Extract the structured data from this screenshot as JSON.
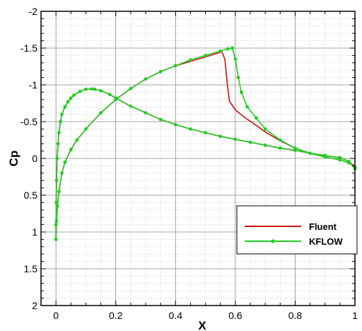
{
  "chart_data": {
    "type": "line",
    "xlabel": "X",
    "ylabel": "Cp",
    "xlim": [
      -0.05,
      1.0
    ],
    "ylim": [
      2,
      -2
    ],
    "y_inverted": true,
    "x_ticks": [
      "0",
      "0.2",
      "0.4",
      "0.6",
      "0.8",
      "1"
    ],
    "y_ticks": [
      "-2",
      "-1.5",
      "-1",
      "-0.5",
      "0",
      "0.5",
      "1",
      "1.5",
      "2"
    ],
    "x_tick_values": [
      0,
      0.2,
      0.4,
      0.6,
      0.8,
      1
    ],
    "y_tick_values": [
      -2,
      -1.5,
      -1,
      -0.5,
      0,
      0.5,
      1,
      1.5,
      2
    ],
    "grid": true,
    "legend_position": "bottom-right",
    "series": [
      {
        "name": "Fluent",
        "color": "#cc1111",
        "marker": "none",
        "curves": [
          {
            "x": [
              0.0,
              0.0,
              0.001,
              0.002,
              0.004,
              0.007,
              0.01,
              0.015,
              0.02,
              0.03,
              0.04,
              0.05,
              0.06,
              0.08,
              0.1,
              0.12,
              0.13,
              0.15,
              0.18,
              0.2,
              0.25,
              0.3,
              0.35,
              0.4,
              0.45,
              0.5,
              0.55,
              0.6,
              0.65,
              0.7,
              0.75,
              0.8,
              0.85,
              0.9,
              0.95,
              0.98,
              1.0
            ],
            "y": [
              1.1,
              0.9,
              0.6,
              0.3,
              0.0,
              -0.2,
              -0.35,
              -0.5,
              -0.6,
              -0.7,
              -0.77,
              -0.82,
              -0.86,
              -0.91,
              -0.94,
              -0.945,
              -0.94,
              -0.92,
              -0.87,
              -0.82,
              -0.71,
              -0.62,
              -0.53,
              -0.46,
              -0.4,
              -0.35,
              -0.3,
              -0.26,
              -0.22,
              -0.18,
              -0.14,
              -0.11,
              -0.07,
              -0.04,
              -0.01,
              0.04,
              0.12
            ]
          },
          {
            "x": [
              0.0,
              0.002,
              0.005,
              0.01,
              0.02,
              0.03,
              0.05,
              0.07,
              0.1,
              0.15,
              0.2,
              0.25,
              0.3,
              0.35,
              0.4,
              0.45,
              0.5,
              0.54,
              0.555,
              0.565,
              0.572,
              0.58,
              0.6,
              0.63,
              0.67,
              0.7,
              0.75,
              0.8,
              0.85,
              0.9,
              0.95,
              0.98,
              1.0
            ],
            "y": [
              1.1,
              0.85,
              0.65,
              0.45,
              0.2,
              0.05,
              -0.12,
              -0.25,
              -0.4,
              -0.62,
              -0.8,
              -0.95,
              -1.08,
              -1.18,
              -1.26,
              -1.32,
              -1.38,
              -1.43,
              -1.45,
              -1.35,
              -1.05,
              -0.78,
              -0.66,
              -0.56,
              -0.45,
              -0.36,
              -0.24,
              -0.14,
              -0.07,
              -0.02,
              0.02,
              0.06,
              0.1
            ]
          }
        ]
      },
      {
        "name": "KFLOW",
        "color": "#22cc22",
        "marker": "circle",
        "curves": [
          {
            "x": [
              0.0,
              0.0,
              0.001,
              0.002,
              0.004,
              0.007,
              0.01,
              0.015,
              0.02,
              0.03,
              0.04,
              0.05,
              0.06,
              0.08,
              0.1,
              0.12,
              0.13,
              0.15,
              0.18,
              0.2,
              0.25,
              0.3,
              0.35,
              0.4,
              0.45,
              0.5,
              0.55,
              0.6,
              0.65,
              0.7,
              0.75,
              0.8,
              0.85,
              0.9,
              0.95,
              0.98,
              1.0
            ],
            "y": [
              1.1,
              0.9,
              0.6,
              0.3,
              0.0,
              -0.2,
              -0.35,
              -0.5,
              -0.6,
              -0.7,
              -0.77,
              -0.82,
              -0.86,
              -0.91,
              -0.94,
              -0.945,
              -0.94,
              -0.92,
              -0.87,
              -0.82,
              -0.71,
              -0.62,
              -0.53,
              -0.46,
              -0.4,
              -0.35,
              -0.3,
              -0.26,
              -0.22,
              -0.18,
              -0.14,
              -0.11,
              -0.07,
              -0.04,
              -0.01,
              0.04,
              0.14
            ]
          },
          {
            "x": [
              0.0,
              0.002,
              0.005,
              0.01,
              0.02,
              0.03,
              0.05,
              0.07,
              0.1,
              0.15,
              0.2,
              0.25,
              0.3,
              0.35,
              0.4,
              0.45,
              0.5,
              0.55,
              0.575,
              0.59,
              0.6,
              0.61,
              0.62,
              0.64,
              0.67,
              0.7,
              0.75,
              0.8,
              0.85,
              0.9,
              0.95,
              0.98,
              1.0
            ],
            "y": [
              1.1,
              0.85,
              0.65,
              0.45,
              0.2,
              0.05,
              -0.12,
              -0.25,
              -0.4,
              -0.62,
              -0.8,
              -0.95,
              -1.08,
              -1.18,
              -1.26,
              -1.34,
              -1.4,
              -1.46,
              -1.49,
              -1.5,
              -1.35,
              -1.1,
              -0.9,
              -0.7,
              -0.55,
              -0.4,
              -0.25,
              -0.14,
              -0.07,
              -0.02,
              0.02,
              0.06,
              0.12
            ]
          }
        ]
      }
    ]
  }
}
